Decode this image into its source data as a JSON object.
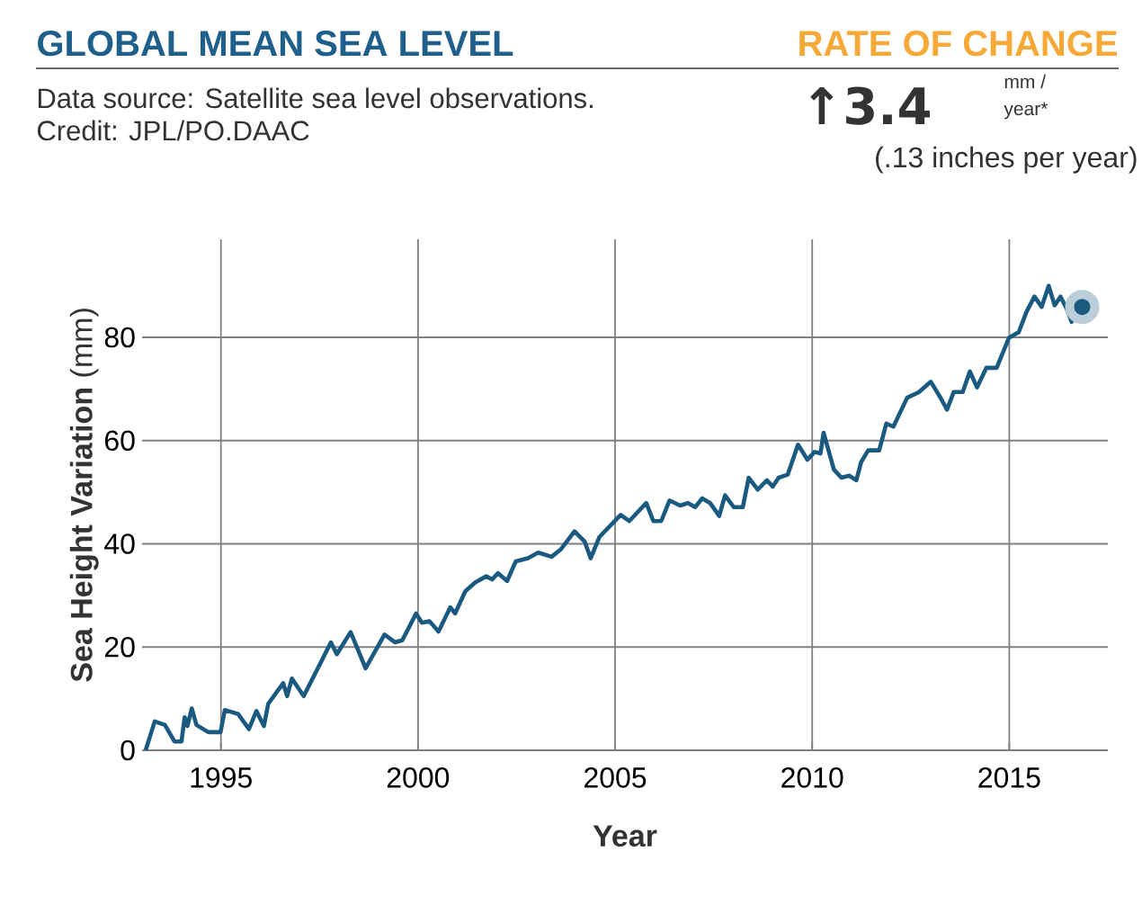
{
  "chart_data": {
    "type": "line",
    "title": "GLOBAL MEAN SEA LEVEL",
    "subtitle": "Data source: Satellite sea level observations.",
    "annotations": [
      "Credit: JPL/PO.DAAC",
      "RATE  OF CHANGE",
      "↑3.4",
      "mm /",
      "year*",
      "(.13 inches per year)"
    ],
    "xlabel": "Year",
    "ylabel": "**Sea Height Variation** (mm)",
    "xlim": [
      1993,
      2017.5
    ],
    "ylim": [
      0,
      99
    ],
    "xticks": [
      1995,
      2000,
      2005,
      2010,
      2015
    ],
    "yticks": [
      0,
      20,
      40,
      60,
      80
    ],
    "grid": true,
    "series": [
      {
        "color": "#1b5a80",
        "x": [
          1993.09,
          1993.32,
          1993.58,
          1993.82,
          1994.0,
          1994.08,
          1994.15,
          1994.26,
          1994.38,
          1994.68,
          1994.99,
          1995.1,
          1995.44,
          1995.71,
          1995.9,
          1996.09,
          1996.2,
          1996.58,
          1996.68,
          1996.8,
          1997.1,
          1997.56,
          1997.79,
          1997.94,
          1998.29,
          1998.67,
          1999.15,
          1999.42,
          1999.6,
          1999.73,
          1999.95,
          2000.1,
          2000.29,
          2000.52,
          2000.82,
          2000.94,
          2001.2,
          2001.45,
          2001.73,
          2001.88,
          2002.03,
          2002.26,
          2002.48,
          2002.79,
          2003.05,
          2003.39,
          2003.62,
          2003.97,
          2004.23,
          2004.38,
          2004.6,
          2005.14,
          2005.36,
          2005.79,
          2005.97,
          2006.17,
          2006.38,
          2006.65,
          2006.85,
          2007.03,
          2007.21,
          2007.41,
          2007.64,
          2007.79,
          2008.01,
          2008.24,
          2008.39,
          2008.62,
          2008.85,
          2009.0,
          2009.15,
          2009.38,
          2009.64,
          2009.88,
          2010.06,
          2010.21,
          2010.29,
          2010.55,
          2010.74,
          2010.94,
          2011.12,
          2011.24,
          2011.42,
          2011.7,
          2011.88,
          2012.06,
          2012.41,
          2012.71,
          2013.01,
          2013.24,
          2013.42,
          2013.59,
          2013.82,
          2014.0,
          2014.18,
          2014.42,
          2014.68,
          2014.99,
          2015.24,
          2015.44,
          2015.64,
          2015.82,
          2016.0,
          2016.15,
          2016.3,
          2016.47,
          2016.58,
          2016.73,
          2016.85
        ],
        "values": [
          0,
          5.6,
          4.9,
          1.7,
          1.7,
          6.4,
          4.7,
          8.1,
          4.9,
          3.5,
          3.5,
          7.8,
          7.0,
          4.1,
          7.6,
          4.7,
          9.0,
          13.0,
          10.5,
          13.9,
          10.5,
          17.4,
          20.9,
          18.6,
          22.9,
          15.9,
          22.4,
          20.9,
          21.3,
          23.2,
          26.5,
          24.7,
          25.0,
          23.0,
          27.7,
          26.5,
          30.8,
          32.5,
          33.7,
          33.1,
          34.3,
          32.8,
          36.6,
          37.2,
          38.3,
          37.5,
          38.9,
          42.4,
          40.4,
          37.2,
          41.3,
          45.6,
          44.4,
          47.9,
          44.4,
          44.4,
          48.4,
          47.4,
          47.9,
          47.1,
          48.8,
          47.9,
          45.4,
          49.4,
          47.1,
          47.1,
          52.8,
          50.5,
          52.3,
          51.1,
          52.8,
          53.4,
          59.2,
          56.3,
          57.8,
          57.5,
          61.5,
          54.4,
          52.8,
          53.2,
          52.3,
          55.8,
          58.1,
          58.1,
          63.3,
          62.7,
          68.3,
          69.4,
          71.4,
          68.5,
          66.0,
          69.4,
          69.4,
          73.4,
          70.3,
          74.1,
          74.1,
          79.9,
          81.0,
          85.0,
          87.9,
          85.9,
          90.0,
          86.2,
          87.9,
          85.3,
          83.0,
          86.2,
          85.9
        ]
      },
      {
        "type": "scatter",
        "color": "#1b5a80",
        "marker": "circle",
        "x": [
          2016.85
        ],
        "values": [
          85.9
        ]
      }
    ]
  }
}
